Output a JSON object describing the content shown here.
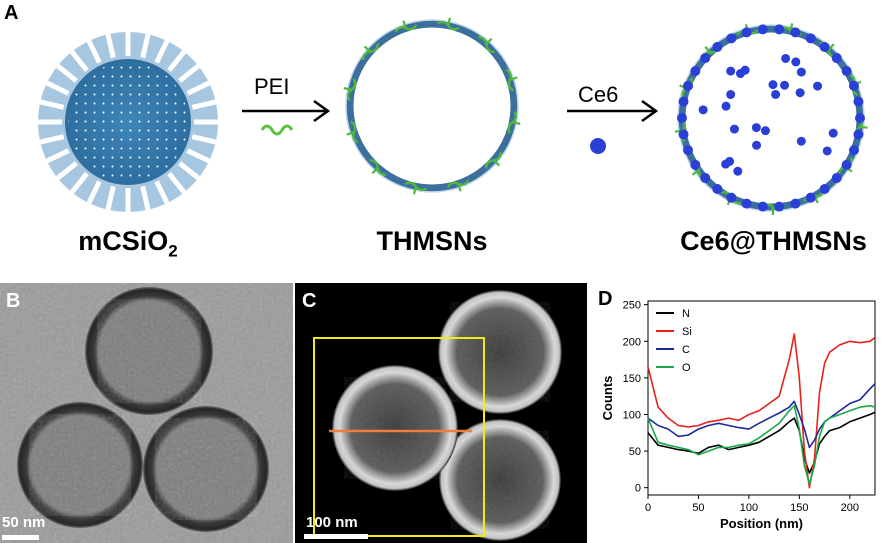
{
  "panel_a": {
    "letter": "A",
    "arrow1_label": "PEI",
    "arrow2_label": "Ce6",
    "caption1_main": "mCSiO",
    "caption1_sub": "2",
    "caption2": "THMSNs",
    "caption3": "Ce6@THMSNs"
  },
  "panel_b": {
    "letter": "B",
    "scale_bar": "50 nm"
  },
  "panel_c": {
    "letter": "C",
    "scale_bar": "100 nm"
  },
  "panel_d": {
    "letter": "D"
  },
  "chart_data": {
    "type": "line",
    "title": "",
    "xlabel": "Position (nm)",
    "ylabel": "Counts",
    "xlim": [
      0,
      225
    ],
    "ylim": [
      -10,
      255
    ],
    "xticks": [
      0,
      50,
      100,
      150,
      200
    ],
    "yticks": [
      0,
      50,
      100,
      150,
      200,
      250
    ],
    "grid": false,
    "legend_position": "top-left",
    "x": [
      0,
      10,
      20,
      30,
      40,
      50,
      60,
      70,
      80,
      90,
      100,
      110,
      120,
      130,
      140,
      145,
      150,
      155,
      160,
      165,
      170,
      175,
      180,
      190,
      200,
      210,
      220,
      225
    ],
    "series": [
      {
        "name": "N",
        "color": "#000000",
        "values": [
          75,
          58,
          55,
          52,
          50,
          47,
          55,
          58,
          52,
          55,
          58,
          62,
          70,
          78,
          90,
          95,
          78,
          40,
          20,
          35,
          60,
          70,
          78,
          82,
          90,
          95,
          100,
          103
        ]
      },
      {
        "name": "Si",
        "color": "#e8221b",
        "values": [
          165,
          110,
          95,
          85,
          83,
          85,
          90,
          92,
          95,
          92,
          100,
          105,
          115,
          125,
          175,
          210,
          150,
          50,
          0,
          40,
          130,
          170,
          185,
          195,
          200,
          198,
          200,
          205
        ]
      },
      {
        "name": "C",
        "color": "#1d2a9c",
        "values": [
          95,
          85,
          80,
          70,
          72,
          80,
          85,
          88,
          85,
          82,
          80,
          88,
          95,
          102,
          110,
          118,
          100,
          80,
          55,
          65,
          80,
          90,
          95,
          105,
          115,
          120,
          135,
          142
        ]
      },
      {
        "name": "O",
        "color": "#1aa84a",
        "values": [
          95,
          62,
          58,
          55,
          52,
          45,
          50,
          55,
          55,
          58,
          60,
          68,
          78,
          88,
          105,
          112,
          80,
          30,
          5,
          30,
          70,
          90,
          95,
          100,
          105,
          110,
          112,
          110
        ]
      }
    ]
  }
}
